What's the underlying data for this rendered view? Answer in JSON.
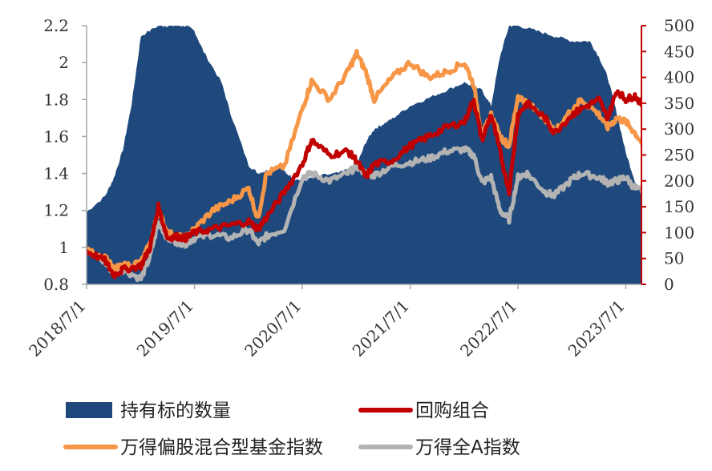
{
  "chart_data": {
    "type": "line",
    "title": "",
    "colors": {
      "holdings": "#1F497D",
      "buyback": "#C00000",
      "mixed_fund": "#F79646",
      "wind_all_a": "#B3B3B3",
      "axis_left": "#A6A6A6",
      "axis_right": "#C00000"
    },
    "left_axis": {
      "ylim": [
        0.8,
        2.2
      ],
      "ticks": [
        "0.8",
        "1",
        "1.2",
        "1.4",
        "1.6",
        "1.8",
        "2",
        "2.2"
      ],
      "tick_values": [
        0.8,
        1.0,
        1.2,
        1.4,
        1.6,
        1.8,
        2.0,
        2.2
      ]
    },
    "right_axis": {
      "ylim": [
        0,
        500
      ],
      "ticks": [
        "0",
        "50",
        "100",
        "150",
        "200",
        "250",
        "300",
        "350",
        "400",
        "450",
        "500"
      ],
      "tick_values": [
        0,
        50,
        100,
        150,
        200,
        250,
        300,
        350,
        400,
        450,
        500
      ]
    },
    "x_axis": {
      "ticks": [
        "2018/7/1",
        "2019/7/1",
        "2020/7/1",
        "2021/7/1",
        "2022/7/1",
        "2023/7/1"
      ]
    },
    "legend": [
      {
        "key": "holdings",
        "label": "持有标的数量",
        "kind": "area"
      },
      {
        "key": "buyback",
        "label": "回购组合",
        "kind": "line"
      },
      {
        "key": "mixed_fund",
        "label": "万得偏股混合型基金指数",
        "kind": "line"
      },
      {
        "key": "wind_all_a",
        "label": "万得全A指数",
        "kind": "line"
      }
    ],
    "series": [
      {
        "key": "holdings",
        "axis": "right",
        "type": "area",
        "x": [
          "2018/7/1",
          "2018/9/1",
          "2018/10/1",
          "2018/11/1",
          "2018/12/1",
          "2019/1/1",
          "2019/3/1",
          "2019/4/1",
          "2019/5/1",
          "2019/6/1",
          "2019/7/1",
          "2019/8/1",
          "2019/10/1",
          "2019/11/1",
          "2020/1/1",
          "2020/2/1",
          "2020/3/1",
          "2020/4/1",
          "2020/5/1",
          "2020/6/1",
          "2020/7/1",
          "2020/9/1",
          "2020/11/1",
          "2021/1/1",
          "2021/2/1",
          "2021/3/1",
          "2021/4/1",
          "2021/5/1",
          "2021/7/1",
          "2021/9/1",
          "2021/11/1",
          "2022/1/1",
          "2022/3/1",
          "2022/4/1",
          "2022/5/1",
          "2022/6/1",
          "2022/7/1",
          "2022/9/1",
          "2022/11/1",
          "2023/1/1",
          "2023/3/1",
          "2023/4/1",
          "2023/5/1",
          "2023/6/1",
          "2023/7/1",
          "2023/8/1",
          "2023/9/1",
          "2023/10/1"
        ],
        "values": [
          140,
          170,
          205,
          260,
          350,
          480,
          500,
          500,
          500,
          500,
          490,
          450,
          390,
          330,
          230,
          215,
          220,
          230,
          218,
          205,
          200,
          210,
          215,
          230,
          275,
          300,
          310,
          320,
          345,
          360,
          375,
          390,
          375,
          345,
          440,
          500,
          500,
          490,
          480,
          470,
          470,
          440,
          400,
          330,
          255,
          200,
          170,
          160
        ]
      },
      {
        "key": "buyback",
        "axis": "left",
        "type": "line",
        "x": [
          "2018/7/1",
          "2018/9/1",
          "2018/10/1",
          "2018/11/1",
          "2019/1/1",
          "2019/2/1",
          "2019/3/1",
          "2019/4/1",
          "2019/5/1",
          "2019/6/1",
          "2019/7/1",
          "2019/9/1",
          "2019/11/1",
          "2020/1/1",
          "2020/2/1",
          "2020/3/1",
          "2020/5/1",
          "2020/7/1",
          "2020/8/1",
          "2020/10/1",
          "2020/12/1",
          "2021/1/1",
          "2021/2/1",
          "2021/3/1",
          "2021/5/1",
          "2021/7/1",
          "2021/9/1",
          "2021/11/1",
          "2022/1/1",
          "2022/2/1",
          "2022/3/1",
          "2022/4/1",
          "2022/5/1",
          "2022/6/1",
          "2022/7/1",
          "2022/8/1",
          "2022/10/1",
          "2022/11/1",
          "2023/1/1",
          "2023/2/1",
          "2023/4/1",
          "2023/5/1",
          "2023/6/1",
          "2023/7/1",
          "2023/8/1",
          "2023/9/1",
          "2023/10/1"
        ],
        "values": [
          0.98,
          0.93,
          0.85,
          0.88,
          0.9,
          1.0,
          1.22,
          1.05,
          1.06,
          1.05,
          1.08,
          1.1,
          1.12,
          1.14,
          1.1,
          1.16,
          1.3,
          1.45,
          1.58,
          1.5,
          1.52,
          1.47,
          1.38,
          1.45,
          1.47,
          1.55,
          1.6,
          1.65,
          1.68,
          1.8,
          1.58,
          1.72,
          1.52,
          1.3,
          1.72,
          1.78,
          1.7,
          1.62,
          1.72,
          1.75,
          1.8,
          1.7,
          1.85,
          1.8,
          1.82,
          1.76,
          1.72
        ]
      },
      {
        "key": "mixed_fund",
        "axis": "left",
        "type": "line",
        "x": [
          "2018/7/1",
          "2018/9/1",
          "2018/10/1",
          "2018/11/1",
          "2019/1/1",
          "2019/2/1",
          "2019/3/1",
          "2019/4/1",
          "2019/5/1",
          "2019/6/1",
          "2019/7/1",
          "2019/9/1",
          "2019/11/1",
          "2020/1/1",
          "2020/2/1",
          "2020/3/1",
          "2020/5/1",
          "2020/7/1",
          "2020/8/1",
          "2020/10/1",
          "2020/12/1",
          "2021/1/1",
          "2021/2/1",
          "2021/3/1",
          "2021/5/1",
          "2021/7/1",
          "2021/9/1",
          "2021/11/1",
          "2022/1/1",
          "2022/2/1",
          "2022/3/1",
          "2022/4/1",
          "2022/5/1",
          "2022/6/1",
          "2022/7/1",
          "2022/8/1",
          "2022/10/1",
          "2022/11/1",
          "2023/1/1",
          "2023/2/1",
          "2023/4/1",
          "2023/5/1",
          "2023/6/1",
          "2023/7/1",
          "2023/8/1",
          "2023/9/1",
          "2023/10/1"
        ],
        "values": [
          0.98,
          0.95,
          0.88,
          0.9,
          0.92,
          1.02,
          1.2,
          1.08,
          1.06,
          1.05,
          1.1,
          1.2,
          1.25,
          1.32,
          1.15,
          1.4,
          1.44,
          1.75,
          1.9,
          1.8,
          1.95,
          2.05,
          1.95,
          1.8,
          1.92,
          2.0,
          1.92,
          1.95,
          2.0,
          1.88,
          1.6,
          1.72,
          1.6,
          1.55,
          1.82,
          1.78,
          1.7,
          1.62,
          1.75,
          1.8,
          1.72,
          1.65,
          1.7,
          1.68,
          1.62,
          1.55,
          1.5
        ]
      },
      {
        "key": "wind_all_a",
        "axis": "left",
        "type": "line",
        "x": [
          "2018/7/1",
          "2018/9/1",
          "2018/10/1",
          "2018/11/1",
          "2019/1/1",
          "2019/2/1",
          "2019/3/1",
          "2019/4/1",
          "2019/5/1",
          "2019/6/1",
          "2019/7/1",
          "2019/9/1",
          "2019/11/1",
          "2020/1/1",
          "2020/2/1",
          "2020/3/1",
          "2020/5/1",
          "2020/7/1",
          "2020/8/1",
          "2020/10/1",
          "2020/12/1",
          "2021/1/1",
          "2021/2/1",
          "2021/3/1",
          "2021/5/1",
          "2021/7/1",
          "2021/9/1",
          "2021/11/1",
          "2022/1/1",
          "2022/2/1",
          "2022/3/1",
          "2022/4/1",
          "2022/5/1",
          "2022/6/1",
          "2022/7/1",
          "2022/8/1",
          "2022/10/1",
          "2022/11/1",
          "2023/1/1",
          "2023/2/1",
          "2023/4/1",
          "2023/5/1",
          "2023/6/1",
          "2023/7/1",
          "2023/8/1",
          "2023/9/1",
          "2023/10/1"
        ],
        "values": [
          0.98,
          0.92,
          0.86,
          0.88,
          0.83,
          0.95,
          1.14,
          1.05,
          1.03,
          1.02,
          1.05,
          1.07,
          1.05,
          1.1,
          1.02,
          1.06,
          1.1,
          1.38,
          1.4,
          1.36,
          1.4,
          1.44,
          1.4,
          1.39,
          1.44,
          1.46,
          1.48,
          1.52,
          1.53,
          1.5,
          1.35,
          1.38,
          1.2,
          1.15,
          1.38,
          1.4,
          1.3,
          1.28,
          1.37,
          1.4,
          1.38,
          1.35,
          1.36,
          1.38,
          1.32,
          1.3,
          1.26
        ]
      }
    ]
  }
}
